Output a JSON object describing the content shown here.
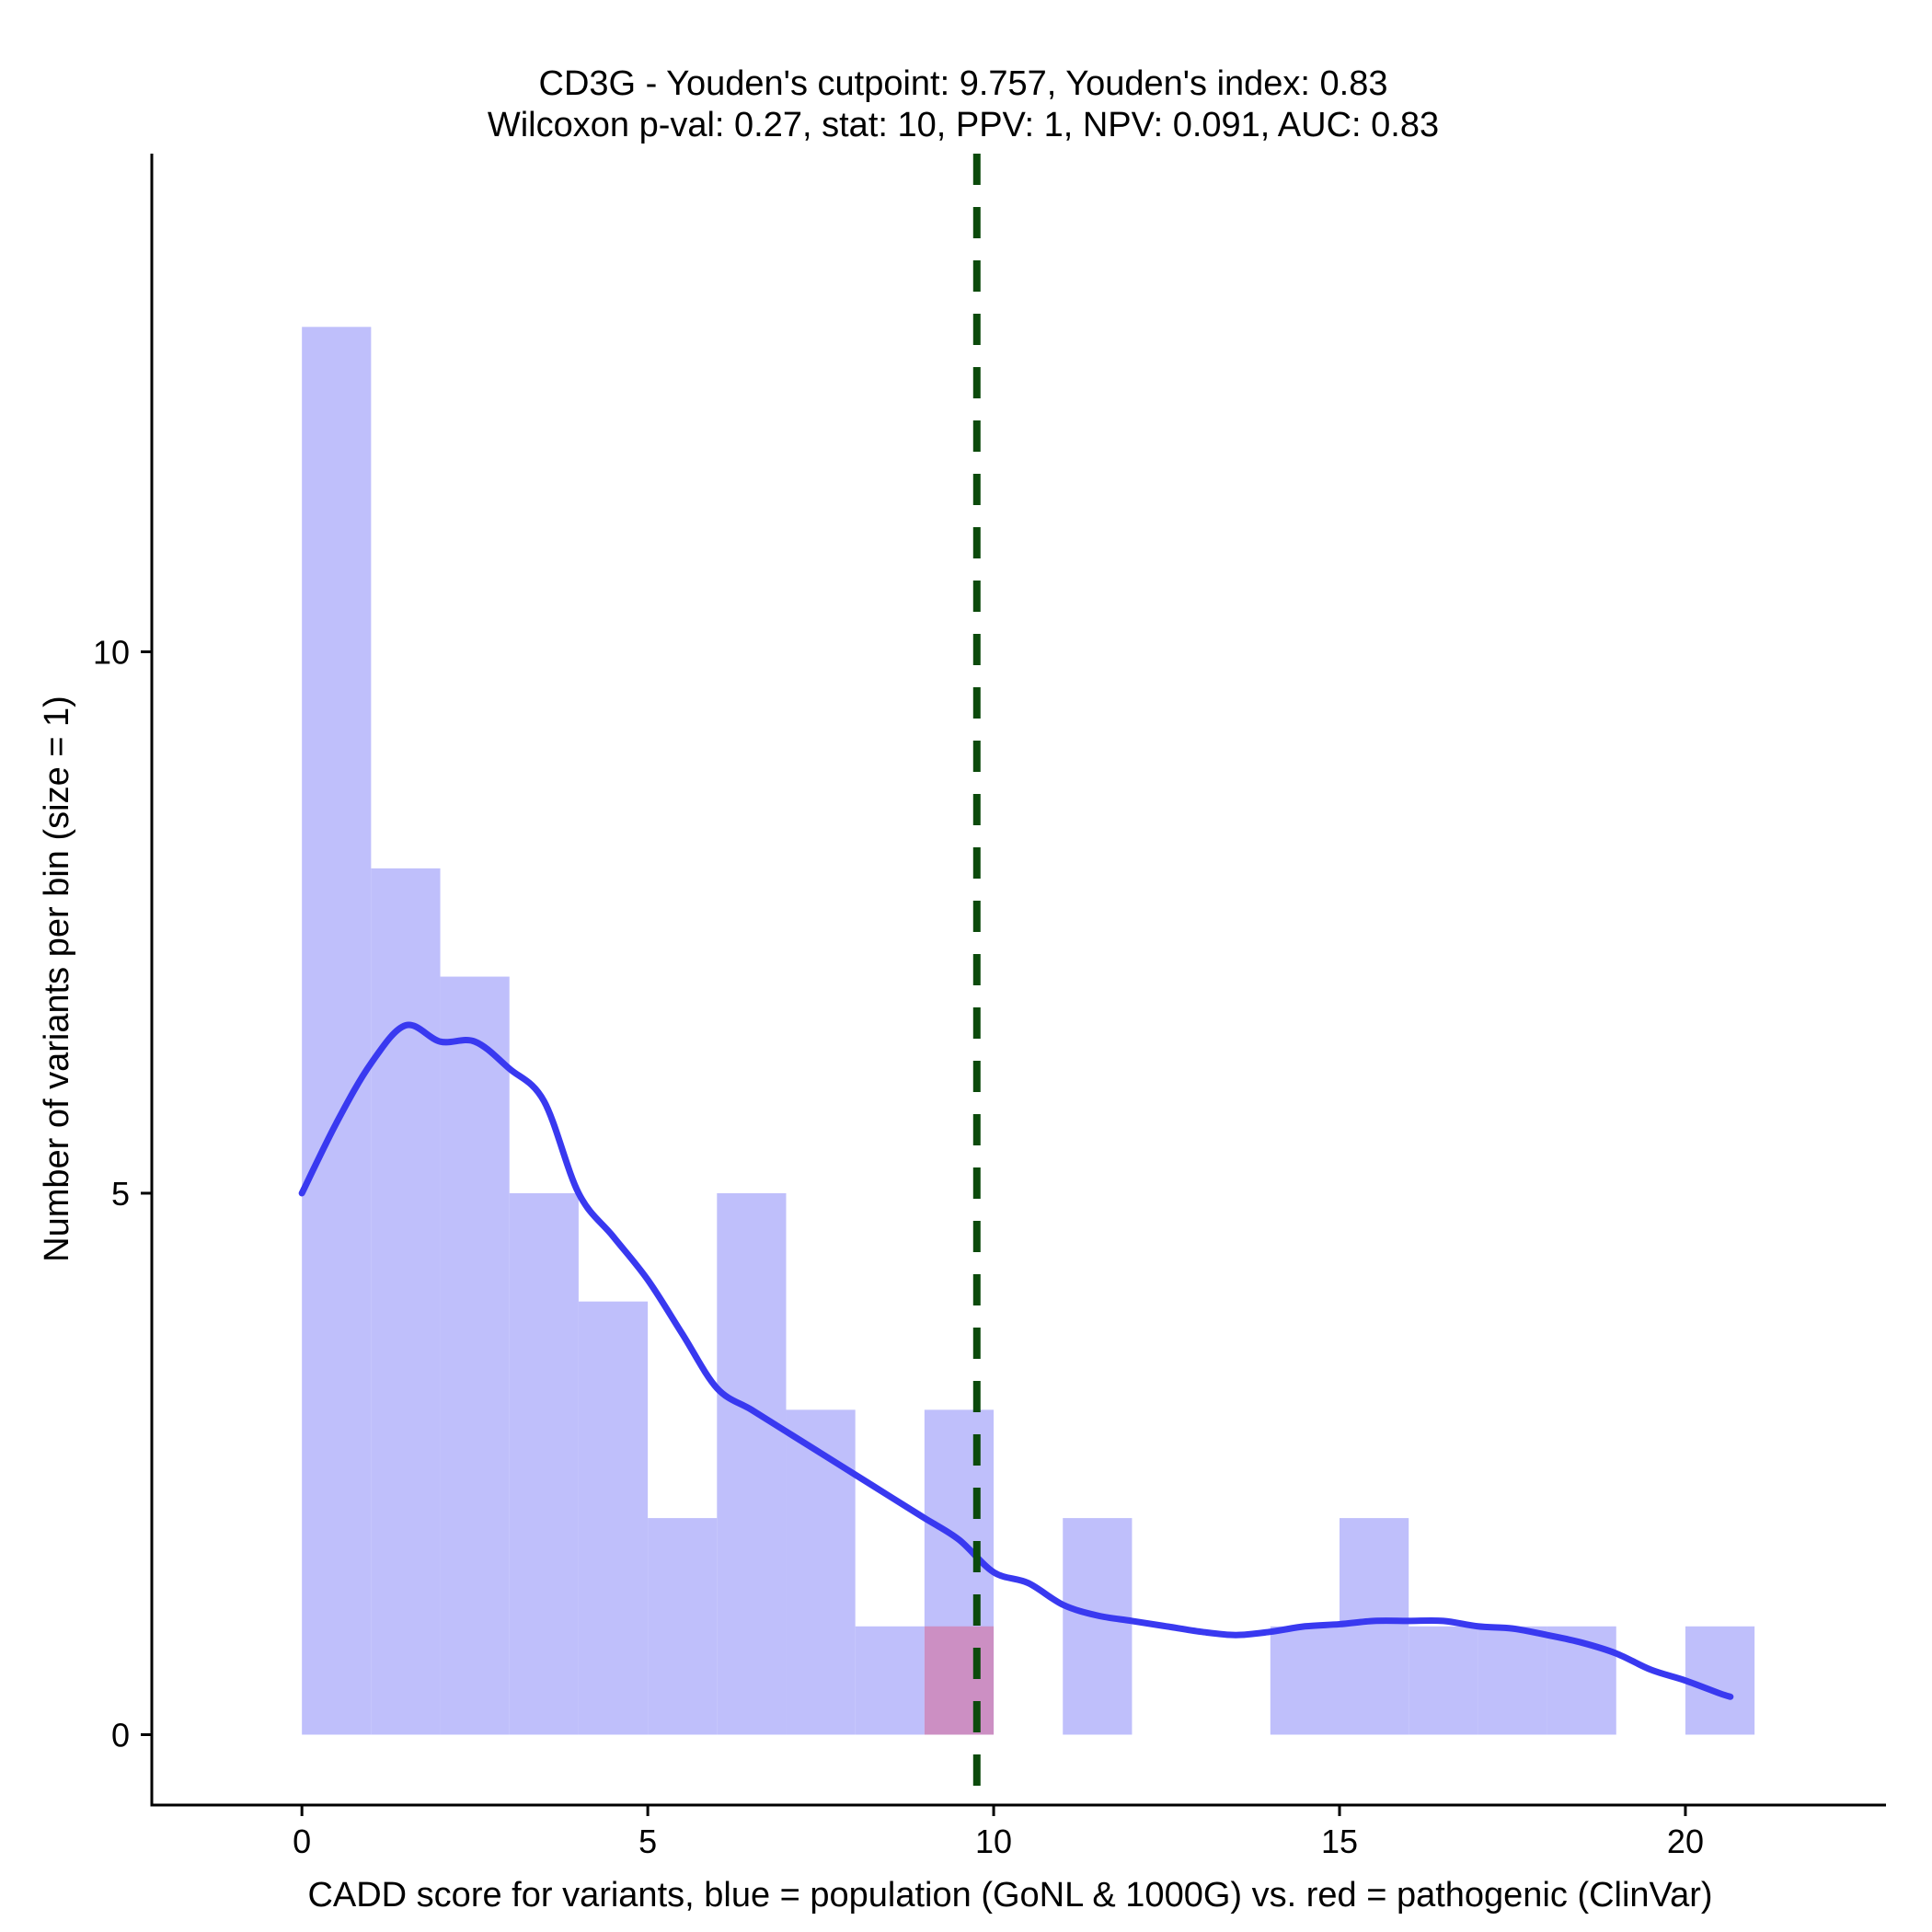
{
  "chart_data": {
    "type": "bar",
    "title": "CD3G - Youden's cutpoint: 9.757, Youden's index: 0.83",
    "subtitle": "Wilcoxon p-val: 0.27, stat: 10, PPV: 1, NPV: 0.091, AUC: 0.83",
    "xlabel": "CADD score for variants, blue = population (GoNL & 1000G) vs. red = pathogenic (ClinVar)",
    "ylabel": "Number of variants per bin (size = 1)",
    "xlim": [
      -2.17,
      22.9
    ],
    "ylim": [
      -0.65,
      14.6
    ],
    "x_ticks": [
      0,
      5,
      10,
      15,
      20
    ],
    "y_ticks": [
      0,
      5,
      10
    ],
    "x_tick_labels": [
      "0",
      "5",
      "10",
      "15",
      "20"
    ],
    "y_tick_labels": [
      "0",
      "5",
      "10"
    ],
    "bin_size": 1,
    "grid": false,
    "legend": "none",
    "colors": {
      "population": "#bfbffb",
      "pathogenic": "#cc8fc3",
      "density_line": "#3939f0",
      "cutpoint_line": "#0b4a0b"
    },
    "series": [
      {
        "name": "population",
        "bins": [
          {
            "x0": 0,
            "x1": 1,
            "count": 13
          },
          {
            "x0": 1,
            "x1": 2,
            "count": 8
          },
          {
            "x0": 2,
            "x1": 3,
            "count": 7
          },
          {
            "x0": 3,
            "x1": 4,
            "count": 5
          },
          {
            "x0": 4,
            "x1": 5,
            "count": 4
          },
          {
            "x0": 5,
            "x1": 6,
            "count": 2
          },
          {
            "x0": 6,
            "x1": 7,
            "count": 5
          },
          {
            "x0": 7,
            "x1": 8,
            "count": 3
          },
          {
            "x0": 8,
            "x1": 9,
            "count": 1
          },
          {
            "x0": 9,
            "x1": 10,
            "count": 3
          },
          {
            "x0": 11,
            "x1": 12,
            "count": 2
          },
          {
            "x0": 14,
            "x1": 15,
            "count": 1
          },
          {
            "x0": 15,
            "x1": 16,
            "count": 2
          },
          {
            "x0": 16,
            "x1": 17,
            "count": 1
          },
          {
            "x0": 17,
            "x1": 18,
            "count": 1
          },
          {
            "x0": 18,
            "x1": 19,
            "count": 1
          },
          {
            "x0": 20,
            "x1": 21,
            "count": 1
          }
        ]
      },
      {
        "name": "pathogenic",
        "bins": [
          {
            "x0": 9,
            "x1": 10,
            "count": 1
          }
        ]
      }
    ],
    "density_curve": {
      "x": [
        0,
        0.5,
        1,
        1.5,
        2,
        2.5,
        3,
        3.5,
        4,
        4.5,
        5,
        5.5,
        6,
        6.5,
        7,
        7.5,
        8,
        8.5,
        9,
        9.5,
        10,
        10.5,
        11,
        11.5,
        12,
        12.5,
        13,
        13.5,
        14,
        14.5,
        15,
        15.5,
        16,
        16.5,
        17,
        17.5,
        18,
        18.5,
        19,
        19.5,
        20,
        20.5,
        20.65
      ],
      "y": [
        5.0,
        5.65,
        6.2,
        6.55,
        6.4,
        6.4,
        6.15,
        5.85,
        5.0,
        4.6,
        4.2,
        3.7,
        3.2,
        3.0,
        2.8,
        2.6,
        2.4,
        2.2,
        2.0,
        1.8,
        1.5,
        1.4,
        1.2,
        1.1,
        1.05,
        1.0,
        0.95,
        0.92,
        0.95,
        1.0,
        1.02,
        1.05,
        1.05,
        1.05,
        1.0,
        0.98,
        0.92,
        0.85,
        0.75,
        0.6,
        0.5,
        0.38,
        0.35
      ]
    },
    "cutpoint": 9.757
  }
}
